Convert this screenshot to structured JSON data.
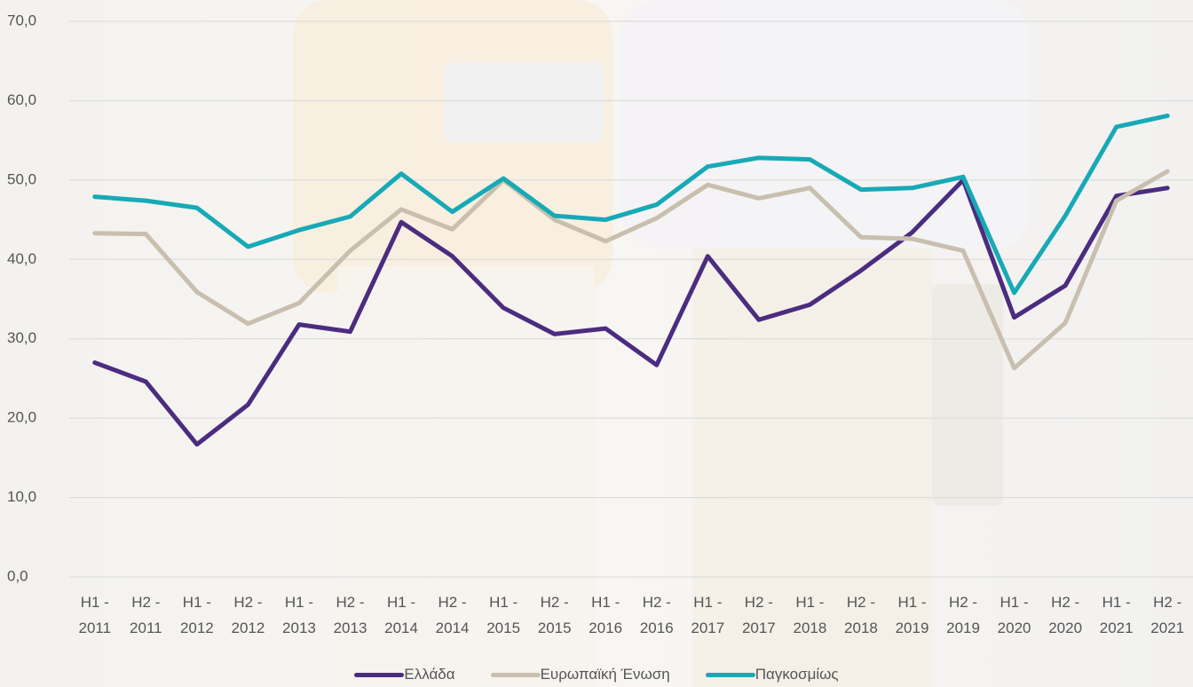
{
  "chart_data": {
    "type": "line",
    "categories": [
      "H1 - 2011",
      "H2 - 2011",
      "H1 - 2012",
      "H2 - 2012",
      "H1 - 2013",
      "H2 - 2013",
      "H1 - 2014",
      "H2 - 2014",
      "H1 - 2015",
      "H2 - 2015",
      "H1 - 2016",
      "H2 - 2016",
      "H1 - 2017",
      "H2 - 2017",
      "H1 - 2018",
      "H2 - 2018",
      "H1 - 2019",
      "H2 - 2019",
      "H1 - 2020",
      "H2 - 2020",
      "H1 - 2021",
      "H2 - 2021"
    ],
    "series": [
      {
        "name": "Ελλάδα",
        "color": "#4b2c7f",
        "values": [
          27.0,
          24.6,
          16.7,
          21.7,
          31.8,
          30.9,
          44.7,
          40.4,
          33.9,
          30.6,
          31.3,
          26.7,
          40.4,
          32.4,
          34.3,
          38.6,
          43.4,
          50.0,
          32.7,
          36.7,
          48.0,
          49.0
        ]
      },
      {
        "name": "Ευρωπαϊκή Ένωση",
        "color": "#c8bfae",
        "values": [
          43.3,
          43.2,
          35.9,
          31.9,
          34.5,
          41.1,
          46.3,
          43.8,
          50.0,
          45.0,
          42.3,
          45.2,
          49.4,
          47.7,
          49.0,
          42.8,
          42.6,
          41.1,
          26.3,
          32.0,
          47.4,
          51.1
        ]
      },
      {
        "name": "Παγκοσμίως",
        "color": "#17a9b6",
        "values": [
          47.9,
          47.4,
          46.5,
          41.6,
          43.7,
          45.4,
          50.8,
          46.0,
          50.2,
          45.5,
          45.0,
          46.9,
          51.7,
          52.8,
          52.6,
          48.8,
          49.0,
          50.4,
          35.8,
          45.5,
          56.7,
          58.1
        ]
      }
    ],
    "ylim": [
      0,
      70
    ],
    "yticks": [
      {
        "value": 0,
        "label": "0,0"
      },
      {
        "value": 10,
        "label": "10,0"
      },
      {
        "value": 20,
        "label": "20,0"
      },
      {
        "value": 30,
        "label": "30,0"
      },
      {
        "value": 40,
        "label": "40,0"
      },
      {
        "value": 50,
        "label": "50,0"
      },
      {
        "value": 60,
        "label": "60,0"
      },
      {
        "value": 70,
        "label": "70,0"
      }
    ],
    "grid": true,
    "legend": "bottom"
  }
}
